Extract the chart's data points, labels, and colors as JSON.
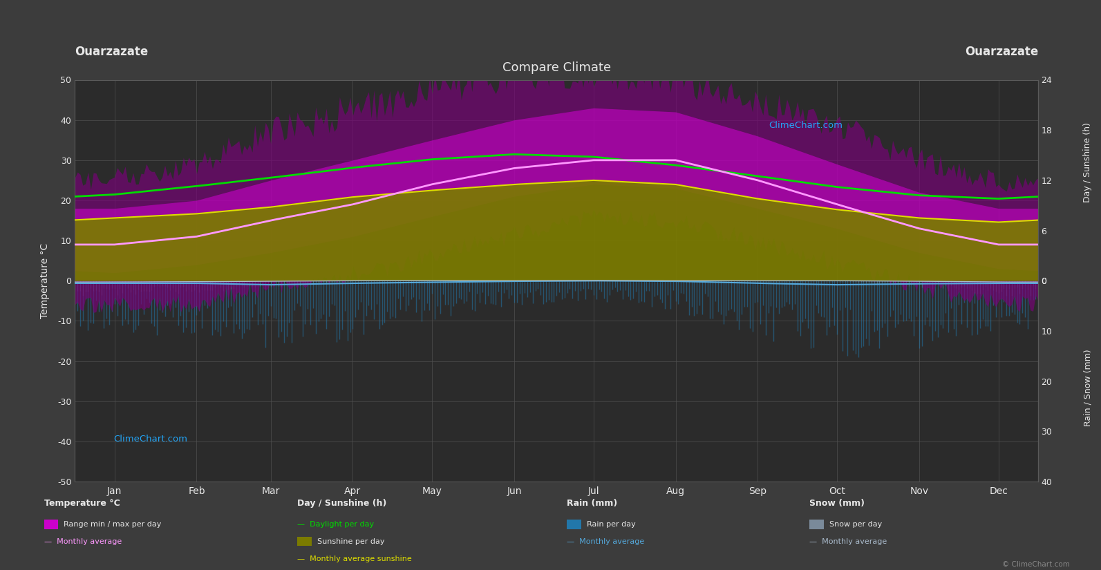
{
  "title": "Compare Climate",
  "location": "Ouarzazate",
  "bg_color": "#3c3c3c",
  "plot_bg_color": "#2b2b2b",
  "grid_color": "#505050",
  "text_color": "#e8e8e8",
  "months": [
    "Jan",
    "Feb",
    "Mar",
    "Apr",
    "May",
    "Jun",
    "Jul",
    "Aug",
    "Sep",
    "Oct",
    "Nov",
    "Dec"
  ],
  "month_days": [
    15,
    46,
    74,
    105,
    135,
    166,
    196,
    227,
    258,
    288,
    319,
    349
  ],
  "temp_max_abs_monthly": [
    23,
    26,
    33,
    38,
    43,
    47,
    48,
    46,
    41,
    35,
    27,
    22
  ],
  "temp_min_abs_monthly": [
    -4,
    -3,
    1,
    4,
    9,
    14,
    18,
    17,
    12,
    7,
    1,
    -3
  ],
  "temp_max_monthly": [
    18,
    20,
    25,
    30,
    35,
    40,
    43,
    42,
    36,
    29,
    22,
    18
  ],
  "temp_min_monthly": [
    2,
    4,
    7,
    11,
    16,
    21,
    24,
    23,
    18,
    13,
    7,
    3
  ],
  "temp_avg_monthly": [
    9,
    11,
    15,
    19,
    24,
    28,
    30,
    30,
    25,
    19,
    13,
    9
  ],
  "daylight_monthly": [
    10.3,
    11.3,
    12.3,
    13.5,
    14.5,
    15.1,
    14.8,
    13.8,
    12.5,
    11.2,
    10.2,
    9.8
  ],
  "sunshine_monthly": [
    7.5,
    8.0,
    8.8,
    10.0,
    10.8,
    11.5,
    12.0,
    11.5,
    9.8,
    8.5,
    7.5,
    7.0
  ],
  "rain_mm_daily_monthly": [
    10,
    12,
    15,
    12,
    8,
    5,
    4,
    6,
    12,
    16,
    14,
    10
  ],
  "rain_mm_avg_monthly": [
    0.5,
    0.5,
    0.8,
    0.5,
    0.3,
    0.1,
    0.0,
    0.1,
    0.5,
    0.8,
    0.6,
    0.5
  ],
  "snow_mm_daily_monthly": [
    6,
    5,
    3,
    0,
    0,
    0,
    0,
    0,
    0,
    0,
    3,
    6
  ],
  "snow_mm_avg_monthly": [
    0.5,
    0.4,
    0.2,
    0.0,
    0.0,
    0.0,
    0.0,
    0.0,
    0.0,
    0.0,
    0.2,
    0.5
  ],
  "ylim": [
    -50,
    50
  ],
  "sunshine_scale": [
    0,
    24
  ],
  "rain_scale": [
    0,
    40
  ],
  "color_temp_abs": "#880088",
  "color_temp_daily": "#cc00cc",
  "color_temp_avg": "#ff99ff",
  "color_daylight": "#00dd00",
  "color_sunshine_fill": "#7b7b00",
  "color_sunshine_avg": "#dddd00",
  "color_rain_bar": "#2277aa",
  "color_rain_avg": "#55aadd",
  "color_snow_bar": "#7a8a9a",
  "color_snow_avg": "#aabbcc",
  "color_watermark": "#22aaff"
}
